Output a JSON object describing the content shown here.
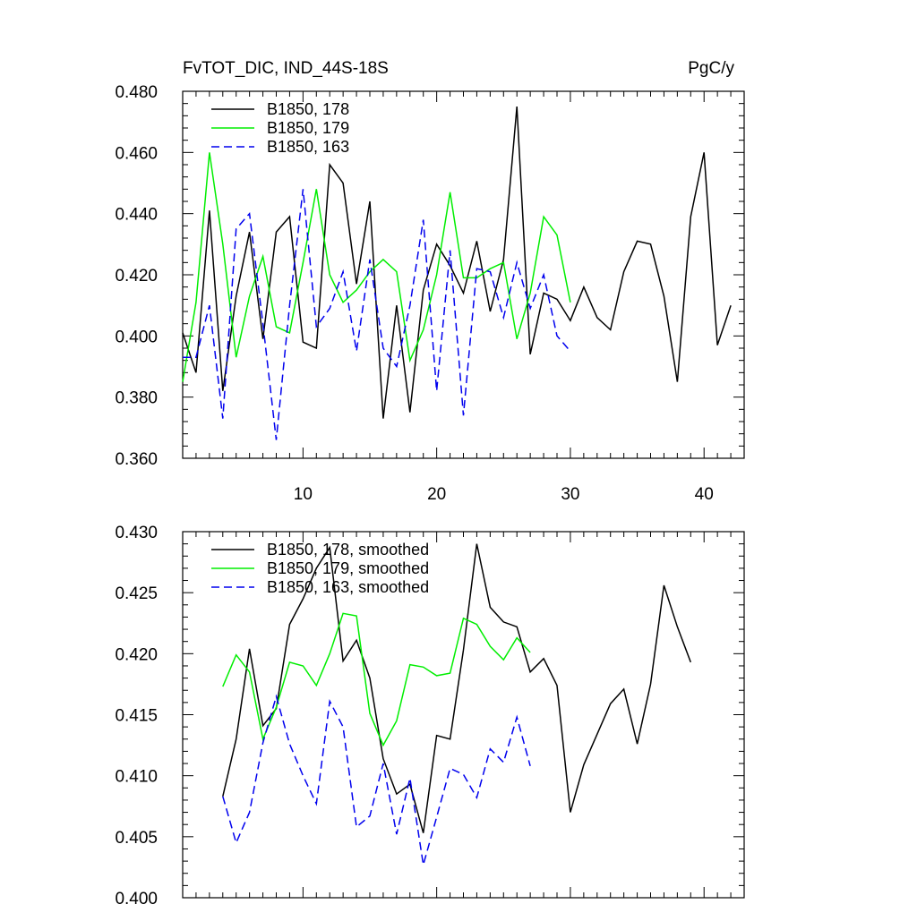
{
  "chart_data": [
    {
      "type": "line",
      "title": "FvTOT_DIC, IND_44S-18S",
      "units": "PgC/y",
      "xlim": [
        1,
        43
      ],
      "ylim": [
        0.36,
        0.48
      ],
      "xticks": [
        10,
        20,
        30,
        40
      ],
      "xtick_labels": [
        "10",
        "20",
        "30",
        "40"
      ],
      "yticks": [
        0.36,
        0.38,
        0.4,
        0.42,
        0.44,
        0.46,
        0.48
      ],
      "ytick_labels": [
        "0.360",
        "0.380",
        "0.400",
        "0.420",
        "0.440",
        "0.460",
        "0.480"
      ],
      "series": [
        {
          "name": "B1850, 178",
          "color": "#000000",
          "dash": "solid",
          "x": [
            1,
            2,
            3,
            4,
            5,
            6,
            7,
            8,
            9,
            10,
            11,
            12,
            13,
            14,
            15,
            16,
            17,
            18,
            19,
            20,
            21,
            22,
            23,
            24,
            25,
            26,
            27,
            28,
            29,
            30,
            31,
            32,
            33,
            34,
            35,
            36,
            37,
            38,
            39,
            40,
            41,
            42
          ],
          "values": [
            0.401,
            0.388,
            0.441,
            0.382,
            0.413,
            0.434,
            0.399,
            0.434,
            0.439,
            0.398,
            0.396,
            0.456,
            0.45,
            0.417,
            0.444,
            0.373,
            0.41,
            0.375,
            0.415,
            0.43,
            0.423,
            0.414,
            0.431,
            0.408,
            0.425,
            0.475,
            0.394,
            0.414,
            0.412,
            0.405,
            0.416,
            0.406,
            0.402,
            0.421,
            0.431,
            0.43,
            0.413,
            0.385,
            0.439,
            0.46,
            0.397,
            0.41
          ]
        },
        {
          "name": "B1850, 179",
          "color": "#00ee00",
          "dash": "solid",
          "x": [
            1,
            2,
            3,
            4,
            5,
            6,
            7,
            8,
            9,
            10,
            11,
            12,
            13,
            14,
            15,
            16,
            17,
            18,
            19,
            20,
            21,
            22,
            23,
            24,
            25,
            26,
            27,
            28,
            29,
            30
          ],
          "values": [
            0.385,
            0.411,
            0.46,
            0.43,
            0.393,
            0.413,
            0.426,
            0.403,
            0.401,
            0.424,
            0.448,
            0.42,
            0.411,
            0.415,
            0.421,
            0.425,
            0.421,
            0.392,
            0.402,
            0.42,
            0.447,
            0.419,
            0.419,
            0.422,
            0.424,
            0.399,
            0.414,
            0.439,
            0.433,
            0.411
          ]
        },
        {
          "name": "B1850, 163",
          "color": "#0000ee",
          "dash": "dashed",
          "x": [
            1,
            2,
            3,
            4,
            5,
            6,
            7,
            8,
            9,
            10,
            11,
            12,
            13,
            14,
            15,
            16,
            17,
            18,
            19,
            20,
            21,
            22,
            23,
            24,
            25,
            26,
            27,
            28,
            29,
            30
          ],
          "values": [
            0.393,
            0.393,
            0.41,
            0.373,
            0.435,
            0.44,
            0.404,
            0.366,
            0.41,
            0.448,
            0.403,
            0.409,
            0.421,
            0.395,
            0.425,
            0.396,
            0.39,
            0.41,
            0.438,
            0.382,
            0.428,
            0.374,
            0.422,
            0.421,
            0.406,
            0.424,
            0.409,
            0.42,
            0.4,
            0.395
          ]
        }
      ]
    },
    {
      "type": "line",
      "title": "",
      "xlim": [
        1,
        43
      ],
      "ylim": [
        0.4,
        0.43
      ],
      "xticks": [
        10,
        20,
        30,
        40
      ],
      "yticks": [
        0.4,
        0.405,
        0.41,
        0.415,
        0.42,
        0.425,
        0.43
      ],
      "ytick_labels": [
        "0.400",
        "0.405",
        "0.410",
        "0.415",
        "0.420",
        "0.425",
        "0.430"
      ],
      "series": [
        {
          "name": "B1850, 178, smoothed",
          "color": "#000000",
          "dash": "solid",
          "x": [
            4,
            5,
            6,
            7,
            8,
            9,
            10,
            11,
            12,
            13,
            14,
            15,
            16,
            17,
            18,
            19,
            20,
            21,
            22,
            23,
            24,
            25,
            26,
            27,
            28,
            29,
            30,
            31,
            32,
            33,
            34,
            35,
            36,
            37,
            38,
            39
          ],
          "values": [
            0.4083,
            0.413,
            0.4204,
            0.4141,
            0.4155,
            0.4224,
            0.4245,
            0.427,
            0.4287,
            0.4194,
            0.4211,
            0.418,
            0.4114,
            0.4085,
            0.4093,
            0.4053,
            0.4133,
            0.413,
            0.4203,
            0.429,
            0.4238,
            0.4226,
            0.4222,
            0.4185,
            0.4196,
            0.4174,
            0.407,
            0.4109,
            0.4134,
            0.4159,
            0.4171,
            0.4126,
            0.4175,
            0.4256,
            0.4222,
            0.4193
          ]
        },
        {
          "name": "B1850, 179, smoothed",
          "color": "#00ee00",
          "dash": "solid",
          "x": [
            4,
            5,
            6,
            7,
            8,
            9,
            10,
            11,
            12,
            13,
            14,
            15,
            16,
            17,
            18,
            19,
            20,
            21,
            22,
            23,
            24,
            25,
            26,
            27
          ],
          "values": [
            0.4173,
            0.4199,
            0.4185,
            0.413,
            0.4156,
            0.4193,
            0.419,
            0.4174,
            0.42,
            0.4233,
            0.4231,
            0.4151,
            0.4125,
            0.4145,
            0.4191,
            0.4189,
            0.4182,
            0.4184,
            0.4229,
            0.4224,
            0.4206,
            0.4195,
            0.4213,
            0.4201
          ]
        },
        {
          "name": "B1850, 163, smoothed",
          "color": "#0000ee",
          "dash": "dashed",
          "x": [
            4,
            5,
            6,
            7,
            8,
            9,
            10,
            11,
            12,
            13,
            14,
            15,
            16,
            17,
            18,
            19,
            20,
            21,
            22,
            23,
            24,
            25,
            26,
            27
          ],
          "values": [
            0.4083,
            0.4045,
            0.407,
            0.4127,
            0.4165,
            0.4126,
            0.41,
            0.4077,
            0.4161,
            0.414,
            0.4058,
            0.4067,
            0.411,
            0.4052,
            0.4098,
            0.4027,
            0.4066,
            0.4106,
            0.4101,
            0.4082,
            0.4122,
            0.4111,
            0.4148,
            0.4108
          ]
        }
      ]
    }
  ]
}
